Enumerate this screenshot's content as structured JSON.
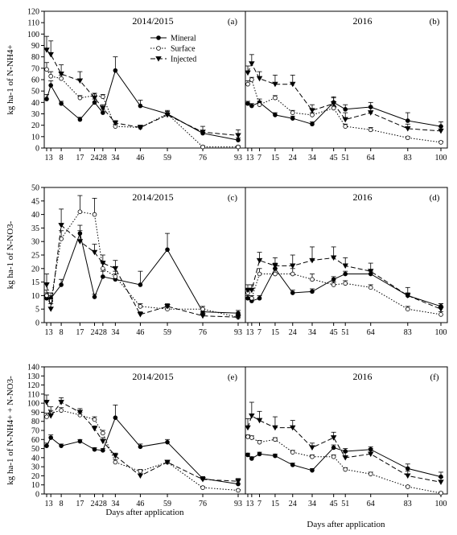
{
  "figure": {
    "x_label": "Days after application",
    "legend": [
      {
        "name": "Mineral",
        "marker": "filled-circle",
        "dash": "solid"
      },
      {
        "name": "Surface",
        "marker": "open-circle",
        "dash": "dotted"
      },
      {
        "name": "Injected",
        "marker": "filled-triangle-down",
        "dash": "dashed"
      }
    ]
  },
  "chart_data": [
    {
      "type": "line",
      "panel": "(a)",
      "title": "2014/2015",
      "ylabel": "kg ha-1 of N-NH4+",
      "ylim": [
        0,
        120
      ],
      "yticks": [
        0,
        10,
        20,
        30,
        40,
        50,
        60,
        70,
        80,
        90,
        100,
        110,
        120
      ],
      "xticks": [
        1,
        3,
        8,
        17,
        24,
        28,
        34,
        46,
        59,
        76,
        93
      ],
      "xtick_labels": [
        "1",
        "3",
        "8",
        "17",
        "24",
        "28",
        "34",
        "46",
        "59",
        "76",
        "93"
      ],
      "series": [
        {
          "name": "Mineral",
          "x": [
            1,
            3,
            8,
            17,
            24,
            28,
            34,
            46,
            59,
            76,
            93
          ],
          "y": [
            43,
            55,
            39,
            25,
            40,
            31,
            68,
            37,
            30,
            13,
            7
          ],
          "err": [
            4,
            4,
            2,
            2,
            3,
            3,
            12,
            5,
            3,
            2,
            2
          ]
        },
        {
          "name": "Surface",
          "x": [
            1,
            3,
            8,
            17,
            24,
            28,
            34,
            46,
            59,
            76,
            93
          ],
          "y": [
            69,
            63,
            61,
            44,
            46,
            45,
            19,
            18,
            30,
            1,
            1
          ],
          "err": [
            6,
            4,
            3,
            2,
            2,
            2,
            2,
            2,
            2,
            1,
            1
          ]
        },
        {
          "name": "Injected",
          "x": [
            1,
            3,
            8,
            17,
            24,
            28,
            34,
            46,
            59,
            76,
            93
          ],
          "y": [
            86,
            82,
            65,
            59,
            44,
            35,
            22,
            18,
            29,
            14,
            11
          ],
          "err": [
            12,
            12,
            8,
            8,
            4,
            3,
            2,
            2,
            3,
            5,
            5
          ]
        }
      ]
    },
    {
      "type": "line",
      "panel": "(b)",
      "title": "2016",
      "ylim": [
        0,
        120
      ],
      "yticks": [
        0,
        10,
        20,
        30,
        40,
        50,
        60,
        70,
        80,
        90,
        100,
        110,
        120
      ],
      "xticks": [
        1,
        3,
        7,
        15,
        24,
        34,
        45,
        51,
        64,
        83,
        100
      ],
      "xtick_labels": [
        "1",
        "3",
        "7",
        "15",
        "24",
        "34",
        "45",
        "51",
        "64",
        "83",
        "100"
      ],
      "series": [
        {
          "name": "Mineral",
          "x": [
            1,
            3,
            7,
            15,
            24,
            34,
            45,
            51,
            64,
            83,
            100
          ],
          "y": [
            39,
            37,
            40,
            29,
            26,
            21,
            40,
            34,
            36,
            24,
            19
          ],
          "err": [
            2,
            2,
            3,
            2,
            2,
            2,
            4,
            4,
            4,
            7,
            4
          ]
        },
        {
          "name": "Surface",
          "x": [
            1,
            3,
            7,
            15,
            24,
            34,
            45,
            51,
            64,
            83,
            100
          ],
          "y": [
            56,
            60,
            38,
            44,
            31,
            29,
            35,
            19,
            16,
            9,
            5
          ],
          "err": [
            3,
            2,
            3,
            2,
            2,
            2,
            2,
            2,
            2,
            1,
            1
          ]
        },
        {
          "name": "Injected",
          "x": [
            1,
            3,
            7,
            15,
            24,
            34,
            45,
            51,
            64,
            83,
            100
          ],
          "y": [
            66,
            74,
            61,
            56,
            56,
            33,
            39,
            25,
            31,
            17,
            15
          ],
          "err": [
            6,
            8,
            6,
            8,
            8,
            5,
            6,
            6,
            5,
            4,
            4
          ]
        }
      ]
    },
    {
      "type": "line",
      "panel": "(c)",
      "title": "2014/2015",
      "ylabel": "kg ha-1 of N-NO3-",
      "ylim": [
        0,
        50
      ],
      "yticks": [
        0,
        5,
        10,
        15,
        20,
        25,
        30,
        35,
        40,
        45,
        50
      ],
      "xticks": [
        1,
        3,
        8,
        17,
        24,
        28,
        34,
        46,
        59,
        76,
        93
      ],
      "xtick_labels": [
        "1",
        "3",
        "8",
        "17",
        "24",
        "28",
        "34",
        "46",
        "59",
        "76",
        "93"
      ],
      "series": [
        {
          "name": "Mineral",
          "x": [
            1,
            3,
            8,
            17,
            24,
            28,
            34,
            46,
            59,
            76,
            93
          ],
          "y": [
            9,
            9,
            14,
            33,
            9.5,
            17,
            16,
            14,
            27,
            4,
            3.5
          ],
          "err": [
            2,
            2,
            2,
            3,
            1,
            2,
            2,
            5,
            6,
            1,
            1
          ]
        },
        {
          "name": "Surface",
          "x": [
            1,
            3,
            8,
            17,
            24,
            28,
            34,
            46,
            59,
            76,
            93
          ],
          "y": [
            10,
            8,
            31,
            41,
            40,
            20,
            17,
            6,
            5,
            5,
            2
          ],
          "err": [
            2,
            2,
            3,
            6,
            6,
            2,
            2,
            1,
            1,
            1,
            1
          ]
        },
        {
          "name": "Injected",
          "x": [
            1,
            3,
            8,
            17,
            24,
            28,
            34,
            46,
            59,
            76,
            93
          ],
          "y": [
            14,
            5,
            36,
            30,
            26,
            22,
            20,
            3,
            6,
            2.5,
            2
          ],
          "err": [
            4,
            2,
            6,
            4,
            3,
            3,
            3,
            1,
            1,
            1,
            1
          ]
        }
      ]
    },
    {
      "type": "line",
      "panel": "(d)",
      "title": "2016",
      "ylim": [
        0,
        50
      ],
      "yticks": [
        0,
        5,
        10,
        15,
        20,
        25,
        30,
        35,
        40,
        45,
        50
      ],
      "xticks": [
        1,
        3,
        7,
        15,
        24,
        34,
        45,
        51,
        64,
        83,
        100
      ],
      "xtick_labels": [
        "1",
        "3",
        "7",
        "15",
        "24",
        "34",
        "45",
        "51",
        "64",
        "83",
        "100"
      ],
      "series": [
        {
          "name": "Mineral",
          "x": [
            1,
            3,
            7,
            15,
            24,
            34,
            45,
            51,
            64,
            83,
            100
          ],
          "y": [
            9,
            8,
            9,
            20,
            11,
            11.5,
            16,
            18,
            18,
            10,
            6
          ],
          "err": [
            1,
            1,
            1,
            2,
            1,
            1,
            1,
            1,
            1,
            1,
            1
          ]
        },
        {
          "name": "Surface",
          "x": [
            1,
            3,
            7,
            15,
            24,
            34,
            45,
            51,
            64,
            83,
            100
          ],
          "y": [
            11,
            9,
            18,
            18,
            18,
            16,
            14,
            14.5,
            13,
            5,
            3
          ],
          "err": [
            1,
            1,
            2,
            2,
            2,
            2,
            1,
            1,
            1,
            1,
            1
          ]
        },
        {
          "name": "Injected",
          "x": [
            1,
            3,
            7,
            15,
            24,
            34,
            45,
            51,
            64,
            83,
            100
          ],
          "y": [
            12,
            12,
            23,
            21,
            21,
            23,
            24,
            21,
            19,
            10,
            5
          ],
          "err": [
            2,
            2,
            3,
            3,
            4,
            5,
            4,
            3,
            3,
            3,
            2
          ]
        }
      ]
    },
    {
      "type": "line",
      "panel": "(e)",
      "title": "2014/2015",
      "ylabel": "kg ha-1 of N-NH4+ + N-NO3-",
      "ylim": [
        0,
        140
      ],
      "yticks": [
        0,
        10,
        20,
        30,
        40,
        50,
        60,
        70,
        80,
        90,
        100,
        110,
        120,
        130,
        140
      ],
      "xticks": [
        1,
        3,
        8,
        17,
        24,
        28,
        34,
        46,
        59,
        76,
        93
      ],
      "xtick_labels": [
        "1",
        "3",
        "8",
        "17",
        "24",
        "28",
        "34",
        "46",
        "59",
        "76",
        "93"
      ],
      "series": [
        {
          "name": "Mineral",
          "x": [
            1,
            3,
            8,
            17,
            24,
            28,
            34,
            46,
            59,
            76,
            93
          ],
          "y": [
            53,
            62,
            53,
            58,
            49,
            48,
            84,
            52,
            57,
            17,
            11
          ],
          "err": [
            3,
            3,
            2,
            2,
            2,
            2,
            14,
            3,
            3,
            2,
            5
          ]
        },
        {
          "name": "Surface",
          "x": [
            1,
            3,
            8,
            17,
            24,
            28,
            34,
            46,
            59,
            76,
            93
          ],
          "y": [
            85,
            89,
            92,
            87,
            82,
            67,
            35,
            25,
            35,
            7,
            4
          ],
          "err": [
            4,
            3,
            3,
            3,
            3,
            3,
            3,
            2,
            2,
            1,
            1
          ]
        },
        {
          "name": "Injected",
          "x": [
            1,
            3,
            8,
            17,
            24,
            28,
            34,
            46,
            59,
            76,
            93
          ],
          "y": [
            101,
            86,
            101,
            90,
            72,
            58,
            42,
            20,
            35,
            16,
            14
          ],
          "err": [
            8,
            10,
            5,
            4,
            3,
            4,
            3,
            2,
            2,
            3,
            3
          ]
        }
      ]
    },
    {
      "type": "line",
      "panel": "(f)",
      "title": "2016",
      "ylim": [
        0,
        140
      ],
      "yticks": [
        0,
        10,
        20,
        30,
        40,
        50,
        60,
        70,
        80,
        90,
        100,
        110,
        120,
        130,
        140
      ],
      "xticks": [
        1,
        3,
        7,
        15,
        24,
        34,
        45,
        51,
        64,
        83,
        100
      ],
      "xtick_labels": [
        "1",
        "3",
        "7",
        "15",
        "24",
        "34",
        "45",
        "51",
        "64",
        "83",
        "100"
      ],
      "series": [
        {
          "name": "Mineral",
          "x": [
            1,
            3,
            7,
            15,
            24,
            34,
            45,
            51,
            64,
            83,
            100
          ],
          "y": [
            43,
            39,
            44,
            42,
            32,
            26,
            51,
            47,
            49,
            28,
            19
          ],
          "err": [
            2,
            2,
            2,
            2,
            2,
            2,
            3,
            3,
            3,
            5,
            5
          ]
        },
        {
          "name": "Surface",
          "x": [
            1,
            3,
            7,
            15,
            24,
            34,
            45,
            51,
            64,
            83,
            100
          ],
          "y": [
            63,
            62,
            57,
            60,
            46,
            41,
            41,
            27,
            22,
            8,
            1
          ],
          "err": [
            2,
            2,
            2,
            2,
            2,
            2,
            2,
            2,
            2,
            1,
            1
          ]
        },
        {
          "name": "Injected",
          "x": [
            1,
            3,
            7,
            15,
            24,
            34,
            45,
            51,
            64,
            83,
            100
          ],
          "y": [
            73,
            86,
            81,
            73,
            73,
            51,
            62,
            40,
            44,
            20,
            13
          ],
          "err": [
            10,
            15,
            10,
            12,
            8,
            5,
            6,
            6,
            6,
            5,
            5
          ]
        }
      ]
    }
  ]
}
